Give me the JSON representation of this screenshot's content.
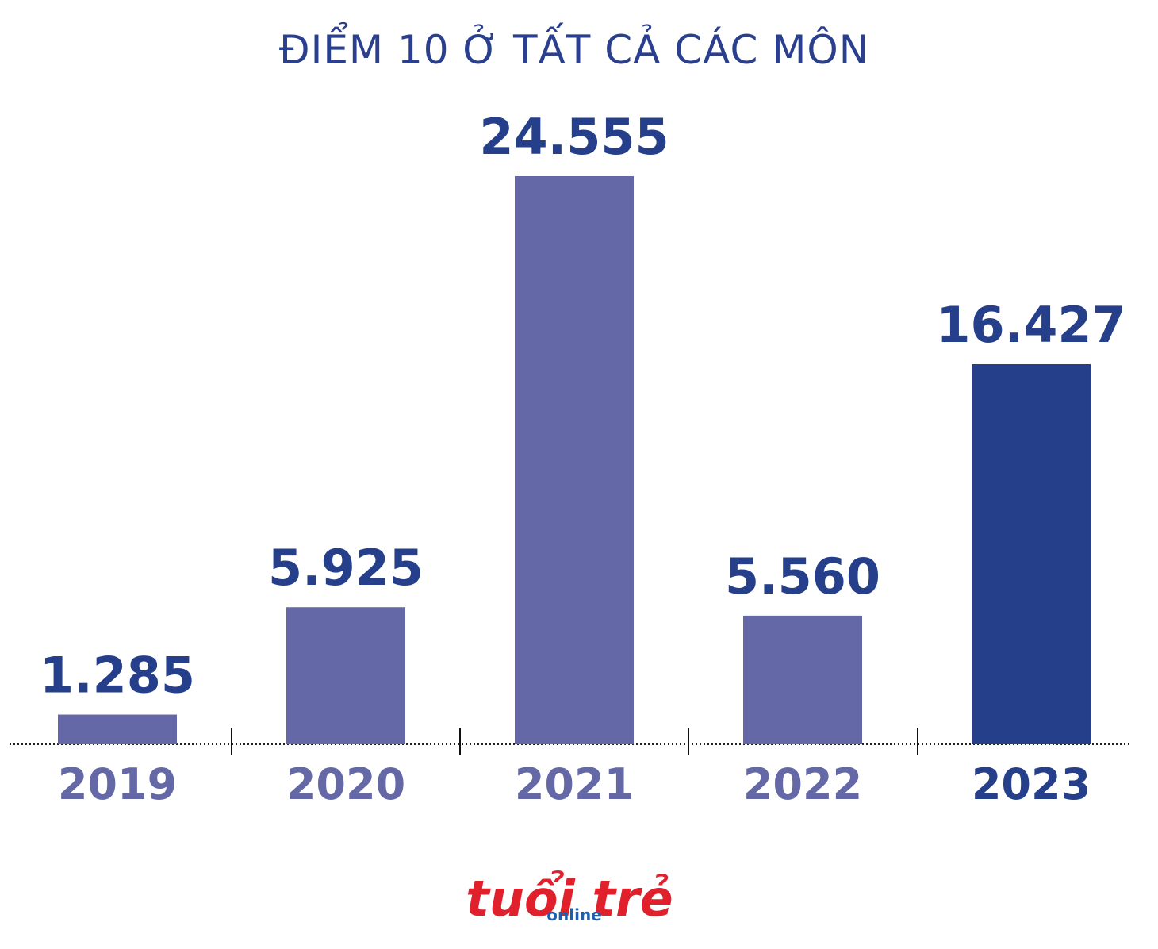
{
  "chart_data": {
    "type": "bar",
    "title": "ĐIỂM 10 Ở TẤT CẢ CÁC MÔN",
    "categories": [
      "2019",
      "2020",
      "2021",
      "2022",
      "2023"
    ],
    "values": [
      1285,
      5925,
      24555,
      5560,
      16427
    ],
    "value_labels": [
      "1.285",
      "5.925",
      "24.555",
      "5.560",
      "16.427"
    ],
    "colors": [
      "#6468a6",
      "#6468a6",
      "#6468a6",
      "#6468a6",
      "#253f8b"
    ],
    "logo": [
      "tuổi trẻ",
      "online"
    ]
  }
}
